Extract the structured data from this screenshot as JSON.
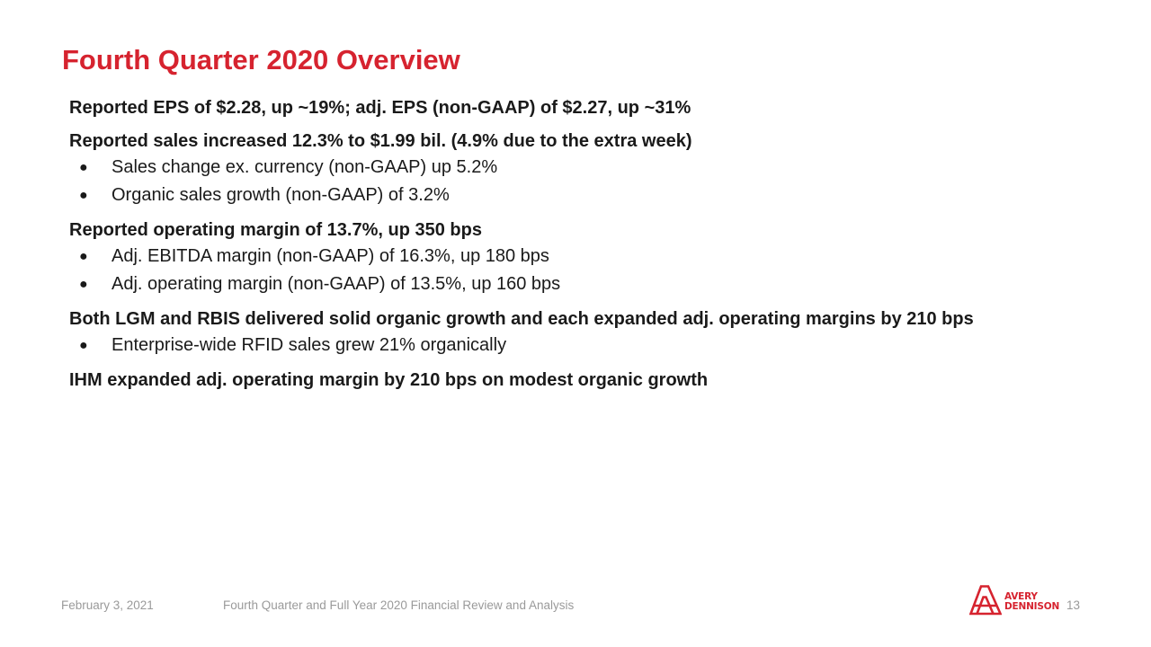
{
  "title": "Fourth Quarter 2020 Overview",
  "sections": [
    {
      "heading": "Reported EPS of $2.28, up ~19%; adj. EPS (non-GAAP) of $2.27, up ~31%",
      "bullets": []
    },
    {
      "heading": "Reported sales increased 12.3% to $1.99 bil. (4.9% due to the extra week)",
      "bullets": [
        "Sales change ex. currency (non-GAAP) up 5.2%",
        "Organic sales growth (non-GAAP) of 3.2%"
      ]
    },
    {
      "heading": "Reported operating margin of 13.7%, up 350 bps",
      "bullets": [
        "Adj. EBITDA margin (non-GAAP) of 16.3%, up 180 bps",
        "Adj. operating margin (non-GAAP) of 13.5%, up 160 bps"
      ]
    },
    {
      "heading": "Both LGM and RBIS delivered solid organic growth and each expanded adj. operating margins by 210 bps",
      "bullets": [
        "Enterprise-wide RFID sales grew 21% organically"
      ]
    },
    {
      "heading": "IHM expanded adj. operating margin by 210 bps on modest organic growth",
      "bullets": []
    }
  ],
  "bullet_glyph": "●",
  "footer": {
    "date": "February 3, 2021",
    "deck_title": "Fourth Quarter and Full Year 2020 Financial Review and Analysis",
    "page_number": "13"
  },
  "logo": {
    "line1": "AVERY",
    "line2": "DENNISON",
    "icon": "avery-dennison-monogram-icon"
  },
  "colors": {
    "accent": "#d6232f",
    "text": "#1a1a1a",
    "footer_text": "#9a9a9a"
  }
}
